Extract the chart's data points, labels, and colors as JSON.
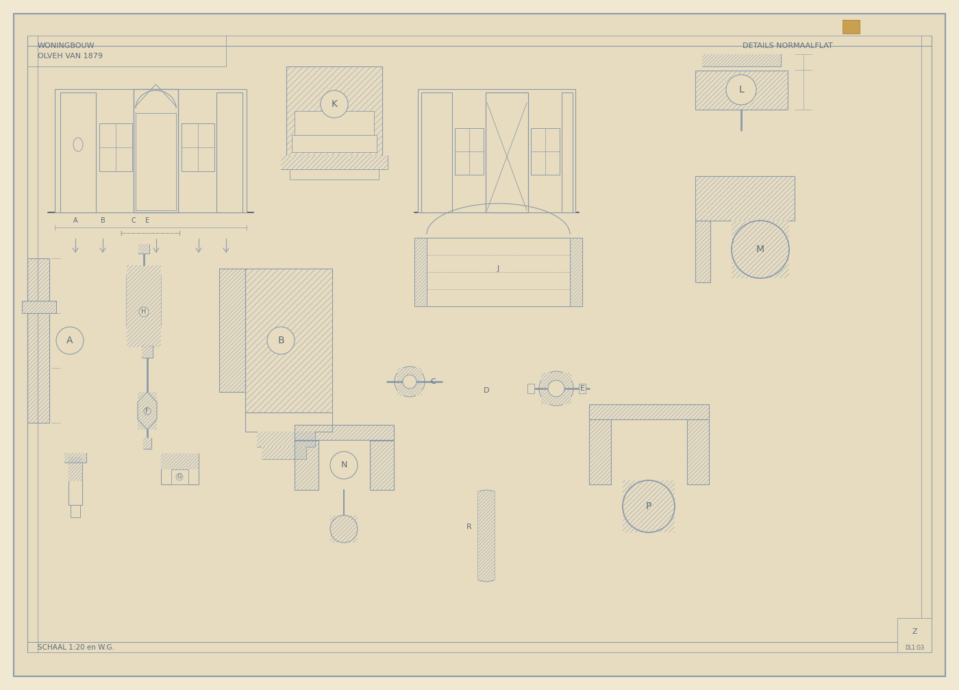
{
  "bg_color": "#f0e8d0",
  "paper_color": "#e8dcc0",
  "line_color": "#8a9aaa",
  "hatch_color": "#9aabbb",
  "dark_line": "#5a6a7a",
  "title_left": "WONINGBOUW",
  "subtitle_left": "OLVEH VAN 1879",
  "title_right": "DETAILS NORMAALFLAT",
  "scale_text": "SCHAAL 1:20 en W.G.",
  "stamp_color": "#c8a050",
  "fig_width": 14.0,
  "fig_height": 10.07,
  "dpi": 100
}
